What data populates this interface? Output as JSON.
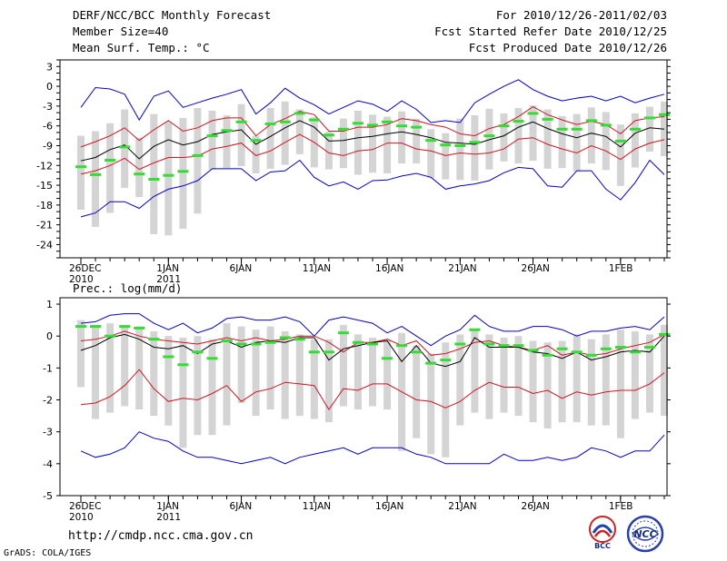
{
  "header": {
    "title": "DERF/NCC/BCC Monthly Forecast",
    "member_size": "Member Size=40",
    "variable": "Mean Surf. Temp.: °C",
    "forecast_for": "For 2010/12/26-2011/02/03",
    "started_refer": "Fcst Started Refer Date 2010/12/25",
    "produced": "Fcst Produced Date 2010/12/26"
  },
  "footer": {
    "url": "http://cmdp.ncc.cma.gov.cn",
    "grads": "GrADS: COLA/IGES",
    "logo1": "BCC",
    "logo2": "NCC"
  },
  "colors": {
    "ensemble_mean": "#000000",
    "spread": "#d0141e",
    "extreme": "#0000cc",
    "member_box": "#d4d4d4",
    "median_mark": "#33dd33"
  },
  "chart_data": [
    {
      "type": "box",
      "title": "Mean Surf. Temp.: °C",
      "ylim": [
        -26,
        4
      ],
      "yticks": [
        3,
        0,
        -3,
        -6,
        -9,
        -12,
        -15,
        -18,
        -21,
        -24
      ],
      "xticks": [
        {
          "day": 0,
          "label": "26DEC",
          "sub": "2010"
        },
        {
          "day": 6,
          "label": "1JAN",
          "sub": "2011"
        },
        {
          "day": 11,
          "label": "6JAN",
          "sub": ""
        },
        {
          "day": 16,
          "label": "11JAN",
          "sub": ""
        },
        {
          "day": 21,
          "label": "16JAN",
          "sub": ""
        },
        {
          "day": 26,
          "label": "21JAN",
          "sub": ""
        },
        {
          "day": 31,
          "label": "26JAN",
          "sub": ""
        },
        {
          "day": 37,
          "label": "1FEB",
          "sub": ""
        }
      ],
      "series": [
        {
          "name": "max",
          "values": [
            -3.2,
            -0.2,
            -0.4,
            -1.2,
            -5.1,
            -1.5,
            -0.7,
            -3.2,
            -2.5,
            -1.8,
            -1.2,
            -0.5,
            -4.2,
            -2.5,
            -0.3,
            -1.8,
            -2.8,
            -4.2,
            -3.2,
            -2.2,
            -2.7,
            -3.8,
            -2.2,
            -3.5,
            -5.5,
            -5.2,
            -5.5,
            -2.5,
            -1.2,
            0,
            1,
            -0.5,
            -1.5,
            -2.2,
            -1.8,
            -1.5,
            -2.2,
            -1.5,
            -2.5,
            -1.8,
            -1.2
          ]
        },
        {
          "name": "spread_upper",
          "values": [
            -9.2,
            -8.4,
            -7.5,
            -6.3,
            -8.2,
            -6.6,
            -5.2,
            -6.8,
            -6.3,
            -5.2,
            -4.8,
            -4.8,
            -7.5,
            -5.8,
            -4.9,
            -3.8,
            -4.3,
            -6.8,
            -6.8,
            -6.2,
            -6.2,
            -5.8,
            -4.9,
            -5.2,
            -5.8,
            -6.2,
            -7.2,
            -7.5,
            -6.4,
            -5.8,
            -4.6,
            -3.1,
            -4.3,
            -5.1,
            -5.8,
            -5.3,
            -5.8,
            -7.2,
            -5.2,
            -4.8,
            -4.6
          ]
        },
        {
          "name": "mean",
          "values": [
            -11.3,
            -10.8,
            -9.6,
            -8.9,
            -11,
            -9.1,
            -8.1,
            -8.9,
            -8.4,
            -7.3,
            -6.9,
            -6.6,
            -8.8,
            -7.6,
            -6.3,
            -5.2,
            -6.2,
            -8.3,
            -8.2,
            -7.8,
            -7.6,
            -7.2,
            -6.9,
            -7.3,
            -7.8,
            -8.5,
            -8.6,
            -8.8,
            -8.1,
            -7.5,
            -6.2,
            -5.4,
            -6.4,
            -7.2,
            -7.8,
            -7.1,
            -7.6,
            -9.2,
            -7.1,
            -6.3,
            -6.5
          ]
        },
        {
          "name": "spread_lower",
          "values": [
            -13.3,
            -12.8,
            -12,
            -10.9,
            -12.6,
            -11.6,
            -10.8,
            -10.8,
            -10.6,
            -9.5,
            -9.1,
            -8.6,
            -10.5,
            -9.8,
            -8.5,
            -7.3,
            -8.5,
            -10.1,
            -10.5,
            -9.8,
            -9.6,
            -8.6,
            -8.6,
            -9.5,
            -9.8,
            -10.5,
            -10.1,
            -10.3,
            -10.1,
            -9.5,
            -8,
            -7.8,
            -8.8,
            -9.5,
            -10.1,
            -9,
            -9.8,
            -11.1,
            -9.5,
            -8.6,
            -8.1
          ]
        },
        {
          "name": "min",
          "values": [
            -19.8,
            -19.2,
            -17.5,
            -17.5,
            -18.5,
            -16.7,
            -15.6,
            -15.1,
            -14.3,
            -12.5,
            -12.5,
            -12.5,
            -14.3,
            -13,
            -12.8,
            -11.2,
            -13.8,
            -15.1,
            -14.5,
            -15.6,
            -14.3,
            -14.2,
            -13.6,
            -13.2,
            -13.8,
            -15.6,
            -15.1,
            -14.8,
            -14.3,
            -13.1,
            -12.3,
            -12.5,
            -15.1,
            -15.3,
            -12.8,
            -12.8,
            -15.6,
            -17.2,
            -14.6,
            -11.2,
            -13.4
          ]
        },
        {
          "name": "median",
          "values": [
            -12.2,
            -13.4,
            -11.2,
            -9.2,
            -13.3,
            -14.1,
            -13.5,
            -12.9,
            -10.5,
            -7.5,
            -6.7,
            -5.4,
            -8.2,
            -5.7,
            -5.4,
            -4.1,
            -5.1,
            -7.4,
            -6.5,
            -5.6,
            -5.9,
            -5.4,
            -6,
            -6.2,
            -8.2,
            -8.9,
            -9,
            -8.5,
            -7.5,
            -6,
            -5.3,
            -4.1,
            -5,
            -6.5,
            -6.5,
            -5.2,
            -5.9,
            -8.3,
            -6.5,
            -4.8,
            -4.3
          ]
        },
        {
          "name": "q_high",
          "values": [
            -7.5,
            -6.8,
            -5.6,
            -3.5,
            -7.8,
            -4.2,
            -5.5,
            -4.8,
            -3.3,
            -3.7,
            -4.4,
            -2.7,
            -7.5,
            -3.3,
            -2.3,
            -3.5,
            -4.7,
            -6.9,
            -4.9,
            -3.7,
            -4.3,
            -4.6,
            -3.8,
            -4.9,
            -6.5,
            -7.1,
            -4.9,
            -4.4,
            -3.4,
            -4.1,
            -3.3,
            -2.9,
            -3.5,
            -4.5,
            -4.2,
            -3.2,
            -3.9,
            -5.8,
            -4.1,
            -3.1,
            -2.3
          ]
        },
        {
          "name": "q_low",
          "values": [
            -18.7,
            -21.3,
            -19.2,
            -15.4,
            -16.8,
            -22.4,
            -22.6,
            -21.6,
            -19.3,
            -12.6,
            -12.4,
            -12.1,
            -13.2,
            -12.5,
            -11.9,
            -10.3,
            -12.3,
            -12.6,
            -12.4,
            -13.4,
            -13.1,
            -13.2,
            -11.7,
            -11.7,
            -13.9,
            -14.1,
            -14.2,
            -14.3,
            -12.6,
            -11.4,
            -11.7,
            -11.3,
            -12.5,
            -12.4,
            -12.9,
            -11.7,
            -12.7,
            -15.1,
            -12.3,
            -9.9,
            -10.6
          ]
        }
      ]
    },
    {
      "type": "box",
      "title": "Prec.: log(mm/d)",
      "ylim": [
        -5,
        1.2
      ],
      "yticks": [
        1,
        0,
        -1,
        -2,
        -3,
        -4,
        -5
      ],
      "xticks": [
        {
          "day": 0,
          "label": "26DEC",
          "sub": "2010"
        },
        {
          "day": 6,
          "label": "1JAN",
          "sub": "2011"
        },
        {
          "day": 11,
          "label": "6JAN",
          "sub": ""
        },
        {
          "day": 16,
          "label": "11JAN",
          "sub": ""
        },
        {
          "day": 21,
          "label": "16JAN",
          "sub": ""
        },
        {
          "day": 26,
          "label": "21JAN",
          "sub": ""
        },
        {
          "day": 31,
          "label": "26JAN",
          "sub": ""
        },
        {
          "day": 37,
          "label": "1FEB",
          "sub": ""
        }
      ],
      "series": [
        {
          "name": "max",
          "values": [
            0.4,
            0.45,
            0.65,
            0.7,
            0.7,
            0.4,
            0.2,
            0.4,
            0.1,
            0.25,
            0.55,
            0.6,
            0.5,
            0.5,
            0.6,
            0.45,
            0,
            0.5,
            0.6,
            0.5,
            0.4,
            0.1,
            0.3,
            0,
            -0.3,
            0,
            0.2,
            0.65,
            0.3,
            0.15,
            0.15,
            0.3,
            0.3,
            0.2,
            0,
            0.15,
            0.15,
            0.25,
            0.3,
            0.2,
            0.6
          ]
        },
        {
          "name": "spread_upper",
          "values": [
            -0.15,
            -0.1,
            0,
            0.15,
            0,
            -0.1,
            -0.15,
            -0.2,
            -0.25,
            -0.15,
            -0.05,
            -0.15,
            -0.05,
            -0.15,
            -0.1,
            0,
            0,
            -0.2,
            -0.5,
            -0.2,
            -0.2,
            -0.1,
            -0.3,
            -0.15,
            -0.6,
            -0.55,
            -0.4,
            -0.2,
            -0.15,
            -0.3,
            -0.35,
            -0.45,
            -0.3,
            -0.6,
            -0.5,
            -0.6,
            -0.55,
            -0.4,
            -0.3,
            -0.2,
            0.05
          ]
        },
        {
          "name": "mean",
          "values": [
            -0.45,
            -0.3,
            -0.05,
            0.05,
            -0.1,
            -0.35,
            -0.4,
            -0.3,
            -0.55,
            -0.25,
            -0.15,
            -0.35,
            -0.2,
            -0.15,
            -0.2,
            -0.05,
            -0.05,
            -0.75,
            -0.4,
            -0.3,
            -0.2,
            -0.15,
            -0.8,
            -0.3,
            -0.85,
            -0.95,
            -0.8,
            -0.05,
            -0.35,
            -0.35,
            -0.35,
            -0.5,
            -0.55,
            -0.7,
            -0.5,
            -0.75,
            -0.65,
            -0.5,
            -0.45,
            -0.5,
            0
          ]
        },
        {
          "name": "spread_lower",
          "values": [
            -2.15,
            -2.1,
            -1.9,
            -1.55,
            -1.05,
            -1.65,
            -2.05,
            -1.95,
            -2,
            -1.8,
            -1.55,
            -2.05,
            -1.75,
            -1.65,
            -1.45,
            -1.5,
            -1.55,
            -2.3,
            -1.65,
            -1.7,
            -1.5,
            -1.5,
            -1.75,
            -2,
            -2.05,
            -2.25,
            -2.05,
            -1.7,
            -1.45,
            -1.6,
            -1.6,
            -1.8,
            -1.7,
            -1.95,
            -1.75,
            -1.85,
            -1.75,
            -1.7,
            -1.7,
            -1.5,
            -1.15
          ]
        },
        {
          "name": "min",
          "values": [
            -3.6,
            -3.8,
            -3.7,
            -3.5,
            -3,
            -3.2,
            -3.3,
            -3.6,
            -3.8,
            -3.8,
            -3.9,
            -4,
            -3.9,
            -3.8,
            -4,
            -3.8,
            -3.7,
            -3.6,
            -3.5,
            -3.7,
            -3.5,
            -3.5,
            -3.5,
            -3.7,
            -3.8,
            -4,
            -4,
            -4,
            -4,
            -3.7,
            -3.9,
            -3.9,
            -3.8,
            -3.9,
            -3.8,
            -3.5,
            -3.6,
            -3.8,
            -3.6,
            -3.6,
            -3.1
          ]
        },
        {
          "name": "median",
          "values": [
            0.3,
            0.3,
            0,
            0.3,
            0.25,
            -0.1,
            -0.65,
            -0.9,
            -0.5,
            -0.7,
            -0.15,
            -0.25,
            -0.25,
            -0.2,
            -0.05,
            -0.1,
            -0.5,
            -0.5,
            0.1,
            -0.2,
            -0.25,
            -0.7,
            -0.3,
            -0.5,
            -0.85,
            -0.75,
            -0.25,
            0.2,
            -0.25,
            -0.3,
            -0.3,
            -0.45,
            -0.6,
            -0.4,
            -0.5,
            -0.6,
            -0.4,
            -0.35,
            -0.5,
            -0.35,
            0.05
          ]
        },
        {
          "name": "q_high",
          "values": [
            0.5,
            0.35,
            0.4,
            0.3,
            0.3,
            0.15,
            0,
            -0.05,
            0,
            -0.1,
            0.4,
            0.3,
            0.2,
            0.3,
            0.15,
            0.05,
            -0.1,
            -0.1,
            0.35,
            0.05,
            -0.05,
            -0.1,
            0.1,
            -0.3,
            -0.55,
            -0.2,
            0.05,
            0.2,
            0.05,
            -0.05,
            0,
            -0.15,
            -0.2,
            -0.15,
            0.05,
            -0.1,
            0.05,
            0.2,
            0.15,
            0.05,
            0.35
          ]
        },
        {
          "name": "q_low",
          "values": [
            -1.6,
            -2.6,
            -2.4,
            -2.2,
            -2.3,
            -2.5,
            -2.8,
            -3.5,
            -3.1,
            -3.1,
            -2.8,
            -2.1,
            -2.5,
            -2.3,
            -2.6,
            -2.5,
            -2.6,
            -2.7,
            -2.2,
            -2.3,
            -2.2,
            -2.3,
            -3.6,
            -3.2,
            -3.7,
            -3.8,
            -2.8,
            -2.4,
            -2.6,
            -2.4,
            -2.5,
            -2.7,
            -2.9,
            -2.7,
            -2.7,
            -2.8,
            -2.8,
            -3.2,
            -2.6,
            -2.4,
            -2.5
          ]
        }
      ]
    }
  ]
}
